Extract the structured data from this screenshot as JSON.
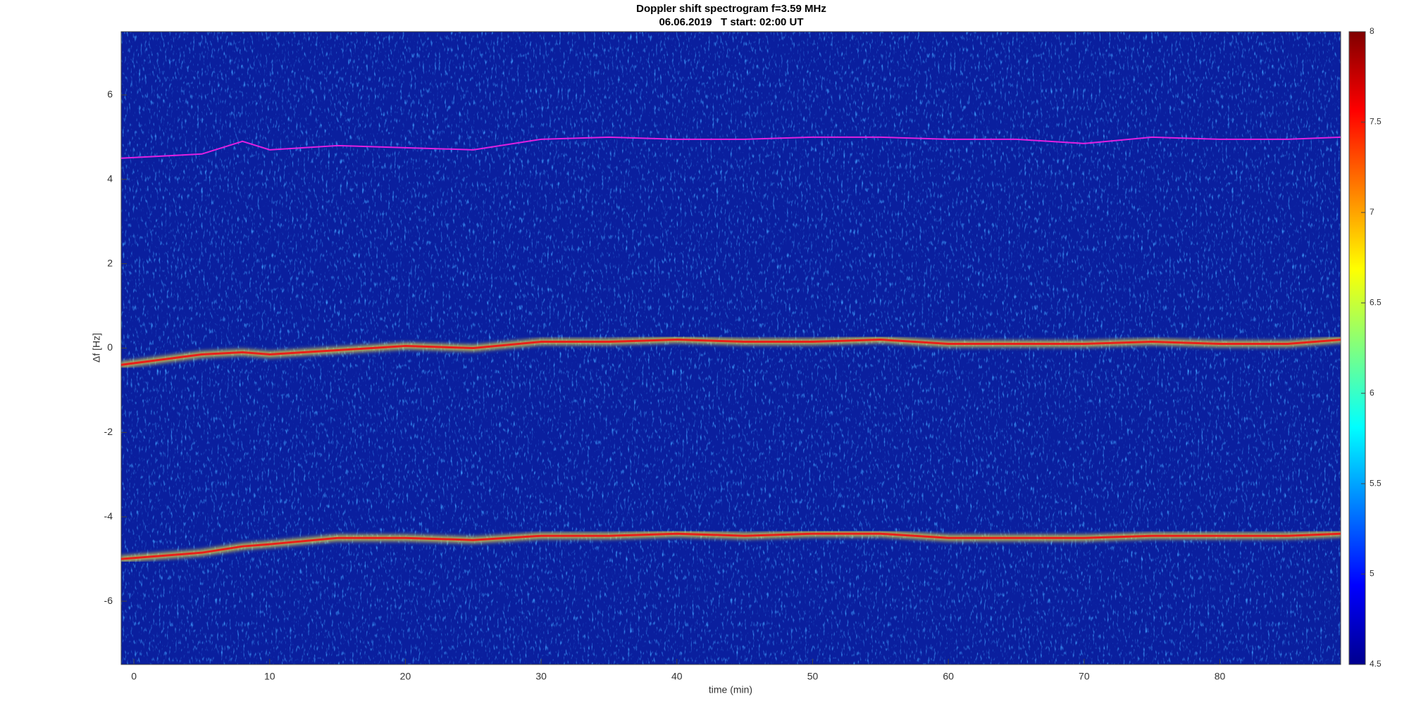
{
  "chart_data": {
    "type": "spectrogram",
    "title": "Doppler shift spectrogram f=3.59 MHz",
    "subtitle": "06.06.2019   T start: 02:00 UT",
    "xlabel": "time (min)",
    "ylabel": "Δf [Hz]",
    "x": [
      -1,
      5,
      8,
      10,
      15,
      20,
      25,
      30,
      35,
      40,
      45,
      50,
      55,
      60,
      65,
      70,
      75,
      80,
      85,
      89
    ],
    "series": [
      {
        "color": "#e020e0",
        "values": [
          4.5,
          4.6,
          4.9,
          4.7,
          4.8,
          4.75,
          4.7,
          4.95,
          5.0,
          4.95,
          4.95,
          5.0,
          5.0,
          4.95,
          4.95,
          4.85,
          5.0,
          4.95,
          4.95,
          5.0
        ]
      },
      {
        "color": "#e8201a",
        "values": [
          -0.4,
          -0.15,
          -0.1,
          -0.15,
          -0.05,
          0.05,
          0.0,
          0.15,
          0.15,
          0.2,
          0.15,
          0.15,
          0.2,
          0.1,
          0.1,
          0.1,
          0.15,
          0.1,
          0.1,
          0.2
        ]
      },
      {
        "color": "#e8201a",
        "values": [
          -5.0,
          -4.85,
          -4.7,
          -4.65,
          -4.5,
          -4.5,
          -4.55,
          -4.45,
          -4.45,
          -4.4,
          -4.45,
          -4.4,
          -4.4,
          -4.5,
          -4.5,
          -4.5,
          -4.45,
          -4.45,
          -4.45,
          -4.4
        ]
      }
    ],
    "xlim": [
      -0.94,
      88.9
    ],
    "xticks": [
      0,
      10,
      20,
      30,
      40,
      50,
      60,
      70,
      80
    ],
    "ylim": [
      -7.5,
      7.5
    ],
    "yticks": [
      -6,
      -4,
      -2,
      0,
      2,
      4,
      6
    ],
    "colorbar": {
      "lim": [
        4.5,
        8
      ],
      "ticks": [
        4.5,
        5,
        5.5,
        6,
        6.5,
        7,
        7.5,
        8
      ]
    }
  }
}
